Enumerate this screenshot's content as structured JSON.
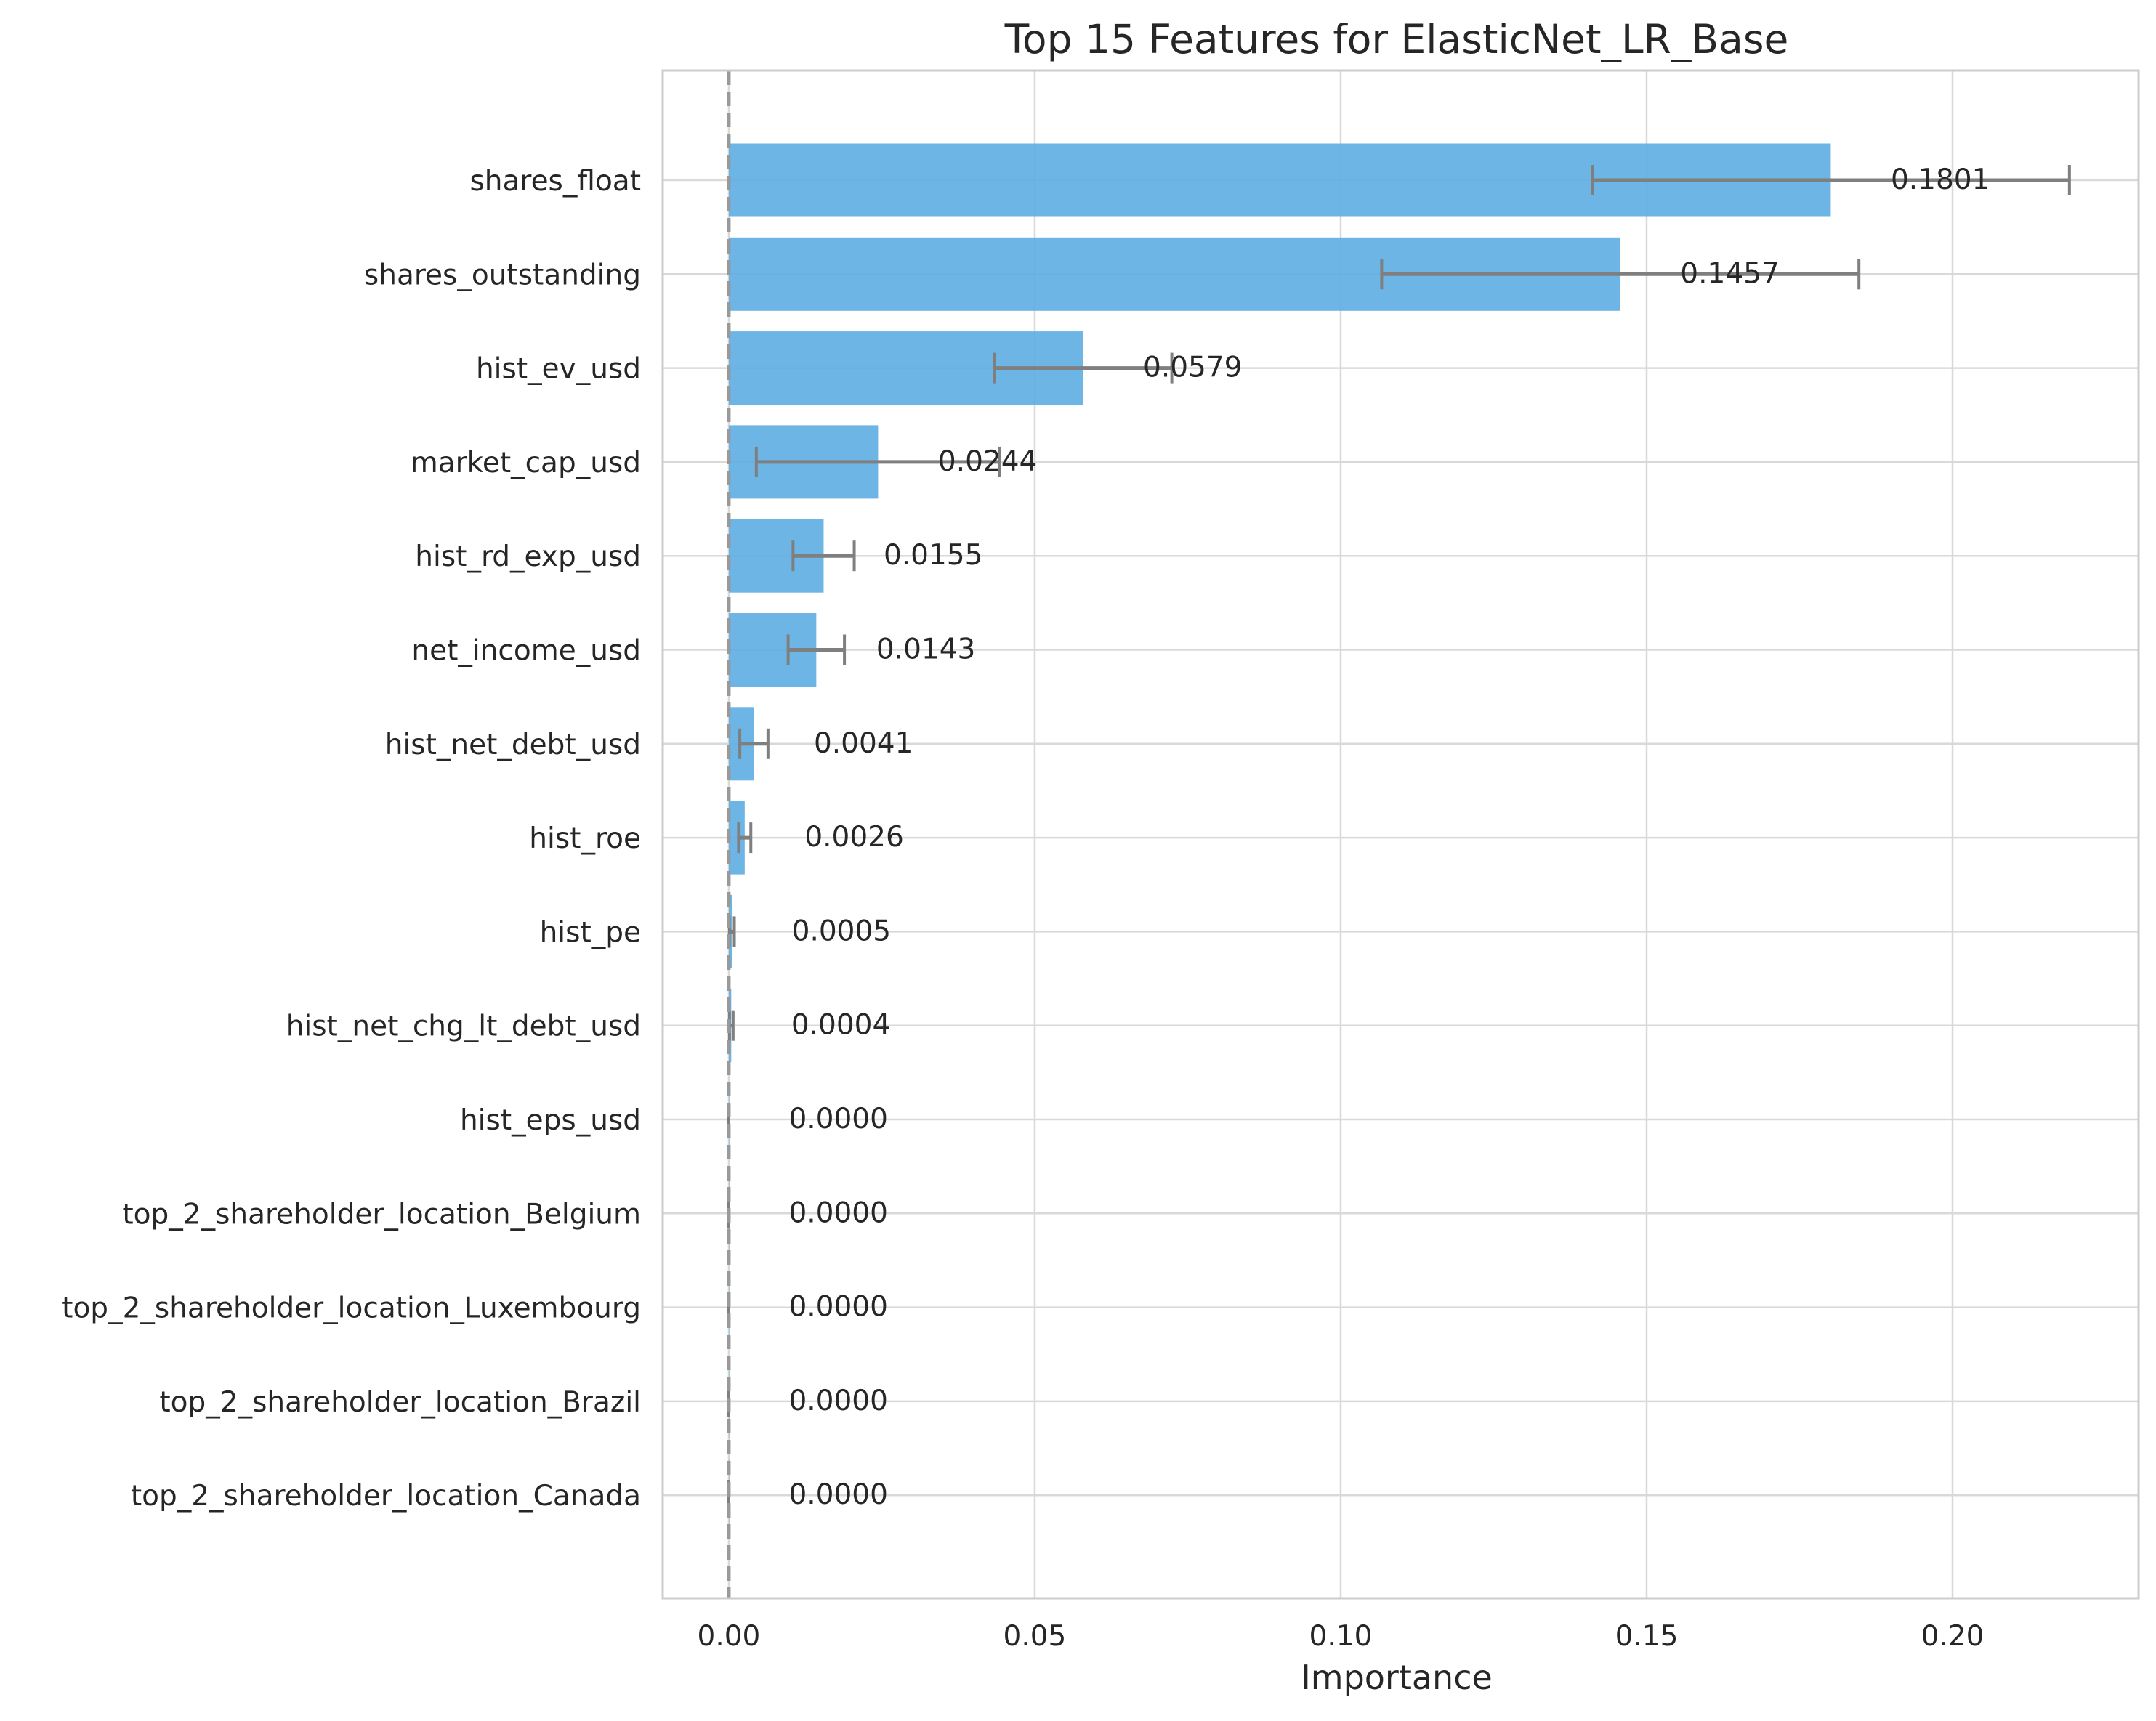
{
  "chart_data": {
    "type": "bar",
    "orientation": "horizontal",
    "title": "Top 15 Features for ElasticNet_LR_Base",
    "xlabel": "Importance",
    "ylabel": "",
    "xlim": [
      -0.0108,
      0.2304
    ],
    "xticks": [
      0.0,
      0.05,
      0.1,
      0.15,
      0.2
    ],
    "xtick_labels": [
      "0.00",
      "0.05",
      "0.10",
      "0.15",
      "0.20"
    ],
    "grid": true,
    "zero_reference_line": "dashed",
    "categories": [
      "shares_float",
      "shares_outstanding",
      "hist_ev_usd",
      "market_cap_usd",
      "hist_rd_exp_usd",
      "net_income_usd",
      "hist_net_debt_usd",
      "hist_roe",
      "hist_pe",
      "hist_net_chg_lt_debt_usd",
      "hist_eps_usd",
      "top_2_shareholder_location_Belgium",
      "top_2_shareholder_location_Luxembourg",
      "top_2_shareholder_location_Brazil",
      "top_2_shareholder_location_Canada"
    ],
    "values": [
      0.1801,
      0.1457,
      0.0579,
      0.0244,
      0.0155,
      0.0143,
      0.0041,
      0.0026,
      0.0005,
      0.0004,
      0.0,
      0.0,
      0.0,
      0.0,
      0.0
    ],
    "value_labels": [
      "0.1801",
      "0.1457",
      "0.0579",
      "0.0244",
      "0.0155",
      "0.0143",
      "0.0041",
      "0.0026",
      "0.0005",
      "0.0004",
      "0.0000",
      "0.0000",
      "0.0000",
      "0.0000",
      "0.0000"
    ],
    "error_low": [
      0.1411,
      0.1067,
      0.0434,
      0.0045,
      0.0105,
      0.0097,
      0.0018,
      0.0016,
      0.0001,
      0.0001,
      0.0,
      0.0,
      0.0,
      0.0,
      0.0
    ],
    "error_high": [
      0.2191,
      0.1847,
      0.0724,
      0.0443,
      0.0205,
      0.0189,
      0.0064,
      0.0036,
      0.0009,
      0.0007,
      0.0,
      0.0,
      0.0,
      0.0,
      0.0
    ],
    "colors": {
      "bar": "#5dade2",
      "error_bar": "#7f7f7f",
      "zero_line": "#999999",
      "grid": "#d9d9d9",
      "frame": "#cccccc"
    }
  }
}
